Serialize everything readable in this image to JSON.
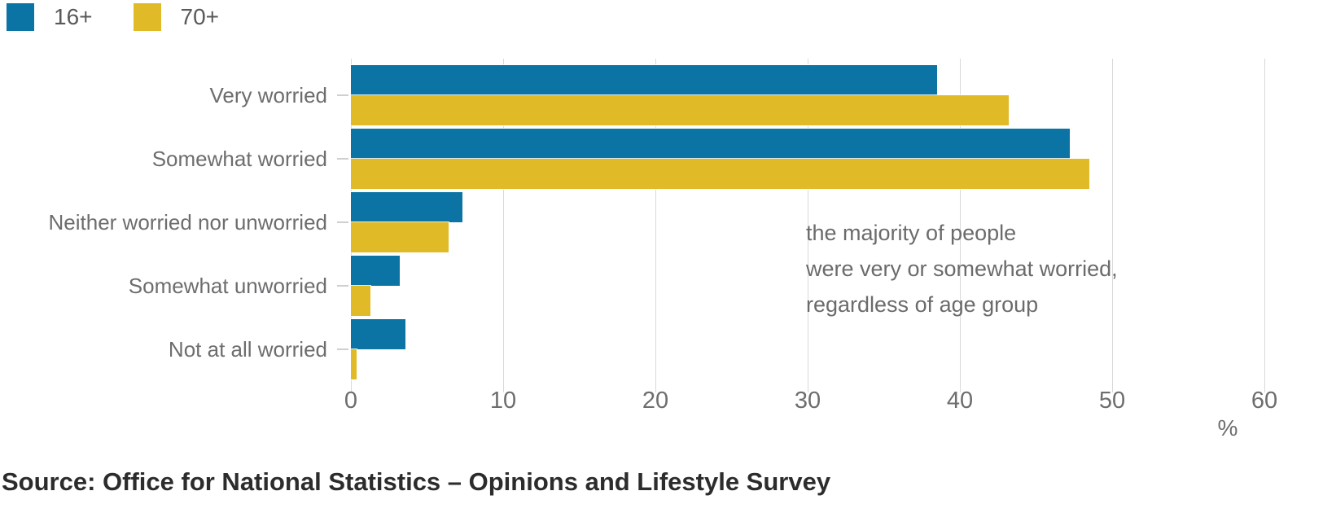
{
  "legend": {
    "items": [
      {
        "label": "16+",
        "color": "#0c74a4"
      },
      {
        "label": "70+",
        "color": "#e1ba28"
      }
    ]
  },
  "chart_data": {
    "type": "bar",
    "orientation": "horizontal",
    "categories": [
      "Very worried",
      "Somewhat worried",
      "Neither worried nor unworried",
      "Somewhat unworried",
      "Not at all worried"
    ],
    "series": [
      {
        "name": "16+",
        "color": "#0c74a4",
        "values": [
          38.5,
          47.2,
          7.3,
          3.2,
          3.6
        ]
      },
      {
        "name": "70+",
        "color": "#e1ba28",
        "values": [
          43.2,
          48.5,
          6.4,
          1.3,
          0.4
        ]
      }
    ],
    "xlim": [
      0,
      60
    ],
    "xticks": [
      0,
      10,
      20,
      30,
      40,
      50,
      60
    ],
    "xlabel": "%",
    "grid": "vertical",
    "legend_position": "top-left",
    "annotation": {
      "lines": [
        "the majority of people",
        "were very or somewhat worried,",
        "regardless of age group"
      ]
    }
  },
  "source": {
    "text": "Source: Office for National Statistics – Opinions and Lifestyle Survey"
  },
  "colors": {
    "grid": "#d9d9d9",
    "axis_text": "#6d6d70",
    "annotation_text": "#6b6b6b",
    "source_text": "#2c2c2d"
  }
}
